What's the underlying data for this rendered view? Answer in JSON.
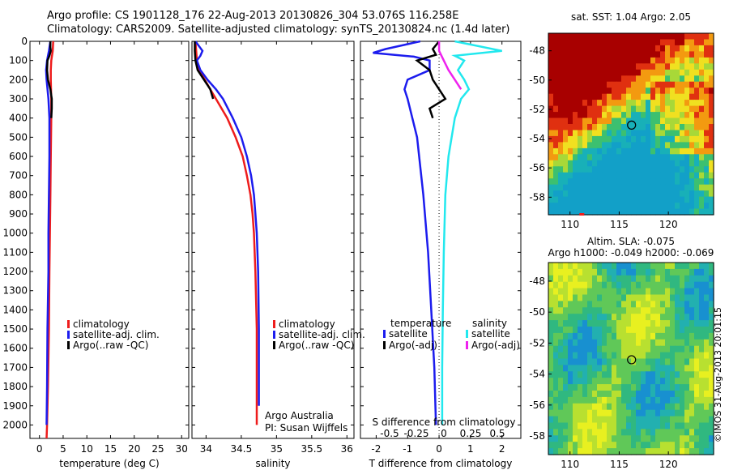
{
  "header": {
    "line1": "Argo profile: CS 1901128_176 22-Aug-2013 20130826_304 53.076S 116.258E",
    "line2": "Climatology: CARS2009. Satellite-adjusted climatology: synTS_20130824.nc (1.4d later)"
  },
  "stamp": "©IMOS 31-Aug-2013 20:01:15",
  "colors": {
    "red": "#ee1c1c",
    "blue": "#1c1cee",
    "black": "#000000",
    "cyan": "#22e8ee",
    "magenta": "#ee22ee"
  },
  "chart_data": [
    {
      "type": "line",
      "xlabel": "temperature (deg C)",
      "ylabel": "",
      "xlim": [
        -2,
        31.5
      ],
      "ylim": [
        2070,
        0
      ],
      "xticks": [
        0,
        5,
        10,
        15,
        20,
        25,
        30
      ],
      "yticks": [
        0,
        100,
        200,
        300,
        400,
        500,
        600,
        700,
        800,
        900,
        1000,
        1100,
        1200,
        1300,
        1400,
        1500,
        1600,
        1700,
        1800,
        1900,
        2000
      ],
      "legend": [
        "climatology",
        "satellite-adj. clim.",
        "Argo(..raw -QC)"
      ],
      "legend_colors": [
        "#ee1c1c",
        "#1c1cee",
        "#000000"
      ],
      "series": [
        {
          "color": "#ee1c1c",
          "depth": [
            0,
            50,
            100,
            150,
            200,
            300,
            400,
            600,
            800,
            1000,
            1200,
            1500,
            1800,
            2000,
            2070
          ],
          "values": [
            2.9,
            2.8,
            2.5,
            2.4,
            2.4,
            2.5,
            2.5,
            2.4,
            2.3,
            2.2,
            2.1,
            2.0,
            1.8,
            1.6,
            1.5
          ]
        },
        {
          "color": "#1c1cee",
          "depth": [
            0,
            50,
            100,
            150,
            200,
            300,
            400,
            600,
            800,
            1000,
            1200,
            1500,
            1800,
            2000
          ],
          "values": [
            2.3,
            2.0,
            1.6,
            1.4,
            1.5,
            1.9,
            2.1,
            2.1,
            2.0,
            1.9,
            1.9,
            1.7,
            1.6,
            1.5
          ]
        },
        {
          "color": "#000000",
          "depth": [
            0,
            30,
            50,
            75,
            100,
            150,
            200,
            250,
            300,
            350,
            400
          ],
          "values": [
            2.3,
            2.3,
            2.4,
            2.1,
            1.7,
            1.6,
            1.8,
            2.3,
            2.6,
            2.6,
            2.5
          ]
        }
      ],
      "annotations": []
    },
    {
      "type": "line",
      "xlabel": "salinity",
      "ylabel": "",
      "xlim": [
        33.8,
        36.1
      ],
      "ylim": [
        2070,
        0
      ],
      "xticks": [
        34,
        34.5,
        35,
        35.5,
        36
      ],
      "legend": [
        "climatology",
        "satellite-adj. clim.",
        "Argo(..raw -QC)"
      ],
      "legend_colors": [
        "#ee1c1c",
        "#1c1cee",
        "#000000"
      ],
      "series": [
        {
          "color": "#ee1c1c",
          "depth": [
            0,
            50,
            100,
            150,
            200,
            250,
            300,
            400,
            500,
            600,
            700,
            800,
            900,
            1000,
            1200,
            1500,
            1800,
            2000
          ],
          "values": [
            33.85,
            33.86,
            33.87,
            33.9,
            33.98,
            34.06,
            34.14,
            34.3,
            34.42,
            34.52,
            34.58,
            34.63,
            34.66,
            34.68,
            34.7,
            34.72,
            34.72,
            34.72
          ]
        },
        {
          "color": "#1c1cee",
          "depth": [
            0,
            50,
            75,
            100,
            150,
            200,
            250,
            300,
            400,
            500,
            600,
            700,
            800,
            900,
            1000,
            1200,
            1500,
            1800,
            1900
          ],
          "values": [
            33.85,
            33.95,
            33.92,
            33.87,
            33.92,
            34.02,
            34.14,
            34.24,
            34.38,
            34.5,
            34.58,
            34.64,
            34.68,
            34.7,
            34.72,
            34.74,
            34.75,
            34.75,
            34.75
          ]
        },
        {
          "color": "#000000",
          "depth": [
            0,
            50,
            100,
            150,
            200,
            250,
            300
          ],
          "values": [
            33.84,
            33.84,
            33.85,
            33.88,
            33.97,
            34.06,
            34.1
          ]
        }
      ],
      "annotations": [
        "Argo Australia",
        "PI: Susan Wijffels"
      ]
    },
    {
      "type": "line",
      "xlabel": "T difference from climatology",
      "ylabel": "",
      "xlim": [
        -2.5,
        2.6
      ],
      "ylim": [
        2070,
        0
      ],
      "xticks": [
        -2,
        -1,
        0,
        1,
        2
      ],
      "top_label": "S difference from climatology",
      "top_ticks": [
        "-0.5",
        "-0.25",
        "0",
        "0.25",
        "0.5"
      ],
      "legend_headers": [
        "temperature",
        "salinity"
      ],
      "legend": [
        "satellite",
        "Argo(-adj)",
        "satellite",
        "Argo(-adj)"
      ],
      "legend_colors": [
        "#1c1cee",
        "#000000",
        "#22e8ee",
        "#ee22ee"
      ],
      "series": [
        {
          "color": "#1c1cee",
          "name": "temperature satellite",
          "depth": [
            0,
            40,
            60,
            80,
            100,
            150,
            200,
            250,
            300,
            500,
            800,
            1100,
            1400,
            1700,
            2000
          ],
          "values": [
            -0.6,
            -1.7,
            -2.1,
            -0.8,
            -0.3,
            -0.3,
            -1.0,
            -1.1,
            -1.0,
            -0.7,
            -0.5,
            -0.35,
            -0.25,
            -0.15,
            -0.1
          ]
        },
        {
          "color": "#22e8ee",
          "name": "salinity satellite",
          "depth": [
            0,
            50,
            75,
            100,
            150,
            200,
            250,
            300,
            400,
            600,
            800,
            1100,
            1400,
            1700,
            2000
          ],
          "values": [
            0.5,
            2.0,
            0.5,
            0.8,
            0.6,
            0.8,
            0.95,
            0.7,
            0.5,
            0.3,
            0.2,
            0.15,
            0.12,
            0.1,
            0.1
          ]
        },
        {
          "color": "#000000",
          "name": "temperature Argo(-adj)",
          "depth": [
            0,
            40,
            70,
            100,
            150,
            200,
            250,
            300,
            350,
            400
          ],
          "values": [
            0,
            -0.2,
            -0.1,
            -0.7,
            -0.3,
            -0.2,
            0,
            0.2,
            -0.3,
            -0.2
          ]
        },
        {
          "color": "#ee22ee",
          "name": "salinity Argo(-adj)",
          "depth": [
            0,
            50,
            100,
            150,
            200,
            250
          ],
          "values": [
            0,
            0.0,
            0.15,
            0.3,
            0.5,
            0.7
          ]
        }
      ],
      "annotations": []
    },
    {
      "type": "heatmap",
      "title": "sat. SST: 1.04 Argo: 2.05",
      "xticks": [
        110,
        115,
        120
      ],
      "yticks": [
        -48,
        -50,
        -52,
        -54,
        -56,
        -58
      ],
      "xlim": [
        107.8,
        124.6
      ],
      "ylim": [
        -59.2,
        -46.8
      ],
      "marker": [
        116.258,
        -53.076
      ]
    },
    {
      "type": "heatmap",
      "title": "Altim. SLA: -0.075",
      "subtitle": "Argo h1000: -0.049 h2000: -0.069",
      "xticks": [
        110,
        115,
        120
      ],
      "yticks": [
        -48,
        -50,
        -52,
        -54,
        -56,
        -58
      ],
      "xlim": [
        107.8,
        124.6
      ],
      "ylim": [
        -59.2,
        -46.8
      ],
      "marker": [
        116.258,
        -53.076
      ]
    }
  ]
}
